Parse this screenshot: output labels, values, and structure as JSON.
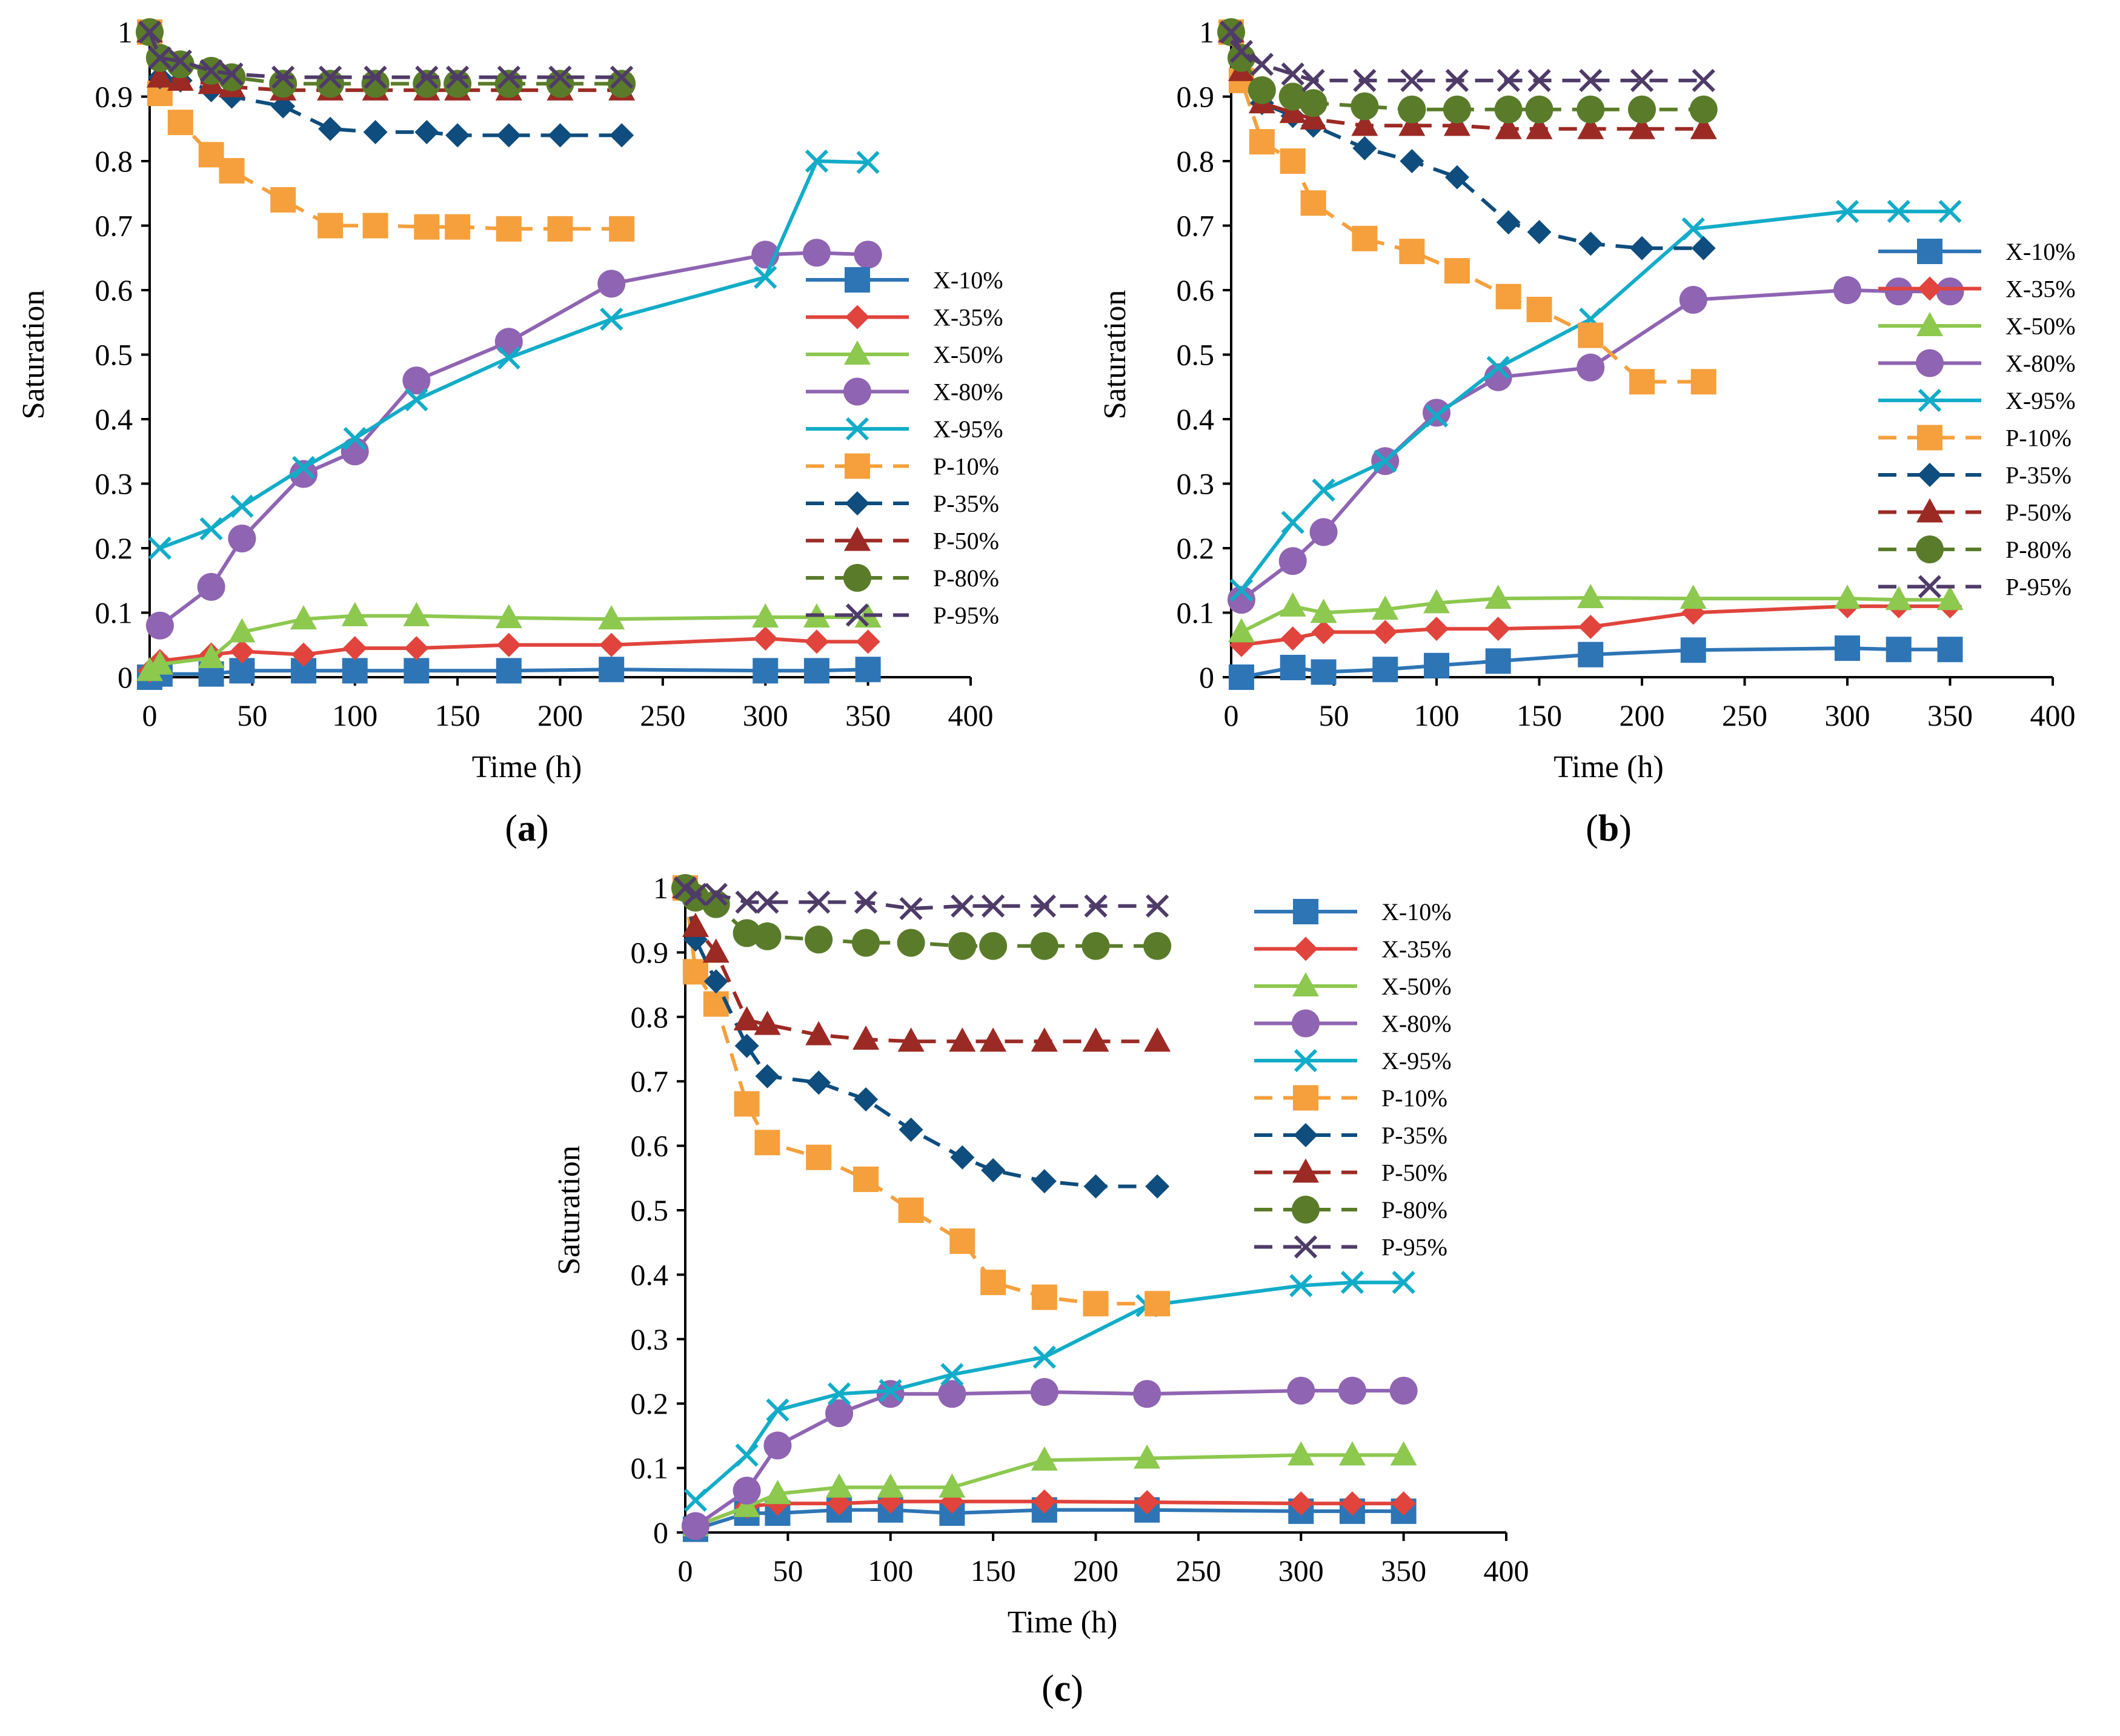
{
  "figure": {
    "panels": [
      "a",
      "b",
      "c"
    ]
  },
  "series_styles": {
    "X-10%": {
      "color": "#2E75B6",
      "marker": "square",
      "dash": false
    },
    "X-35%": {
      "color": "#E0443C",
      "marker": "diamond",
      "dash": false
    },
    "X-50%": {
      "color": "#8DC84F",
      "marker": "triangle",
      "dash": false
    },
    "X-80%": {
      "color": "#8F64B2",
      "marker": "circle",
      "dash": false
    },
    "X-95%": {
      "color": "#12ACC8",
      "marker": "x",
      "dash": false
    },
    "P-10%": {
      "color": "#F5A03C",
      "marker": "square",
      "dash": true
    },
    "P-35%": {
      "color": "#0E4D7D",
      "marker": "diamond",
      "dash": true
    },
    "P-50%": {
      "color": "#9C2A24",
      "marker": "triangle",
      "dash": true
    },
    "P-80%": {
      "color": "#5A7C2A",
      "marker": "circle",
      "dash": true
    },
    "P-95%": {
      "color": "#4F3B68",
      "marker": "x",
      "dash": true
    }
  },
  "chart_data": [
    {
      "type": "line",
      "panel_label": "a",
      "title": "",
      "xlabel": "Time (h)",
      "ylabel": "Saturation",
      "xlim": [
        0,
        400
      ],
      "ylim": [
        0,
        1
      ],
      "xticks": [
        0,
        50,
        100,
        150,
        200,
        250,
        300,
        350,
        400
      ],
      "yticks": [
        0,
        0.1,
        0.2,
        0.3,
        0.4,
        0.5,
        0.6,
        0.7,
        0.8,
        0.9,
        1
      ],
      "grid": false,
      "legend": "right",
      "series": [
        {
          "name": "X-10%",
          "x": [
            0,
            5,
            30,
            45,
            75,
            100,
            130,
            175,
            225,
            300,
            325,
            350
          ],
          "y": [
            0,
            0.005,
            0.005,
            0.01,
            0.01,
            0.01,
            0.01,
            0.01,
            0.012,
            0.01,
            0.01,
            0.012
          ]
        },
        {
          "name": "X-35%",
          "x": [
            0,
            5,
            30,
            45,
            75,
            100,
            130,
            175,
            225,
            300,
            325,
            350
          ],
          "y": [
            0.01,
            0.025,
            0.035,
            0.04,
            0.035,
            0.045,
            0.045,
            0.05,
            0.05,
            0.06,
            0.055,
            0.055
          ]
        },
        {
          "name": "X-50%",
          "x": [
            0,
            5,
            30,
            45,
            75,
            100,
            130,
            175,
            225,
            300,
            325,
            350
          ],
          "y": [
            0.01,
            0.02,
            0.03,
            0.07,
            0.09,
            0.095,
            0.095,
            0.092,
            0.09,
            0.093,
            0.093,
            0.093
          ]
        },
        {
          "name": "X-80%",
          "x": [
            5,
            30,
            45,
            75,
            100,
            130,
            175,
            225,
            300,
            325,
            350
          ],
          "y": [
            0.08,
            0.14,
            0.215,
            0.315,
            0.35,
            0.46,
            0.52,
            0.61,
            0.655,
            0.658,
            0.655
          ]
        },
        {
          "name": "X-95%",
          "x": [
            5,
            30,
            45,
            75,
            100,
            130,
            175,
            225,
            300,
            325,
            350
          ],
          "y": [
            0.2,
            0.23,
            0.265,
            0.325,
            0.37,
            0.43,
            0.495,
            0.555,
            0.62,
            0.8,
            0.798
          ]
        },
        {
          "name": "P-10%",
          "x": [
            0,
            5,
            15,
            30,
            40,
            65,
            88,
            110,
            135,
            150,
            175,
            200,
            230
          ],
          "y": [
            1,
            0.905,
            0.86,
            0.81,
            0.785,
            0.74,
            0.7,
            0.7,
            0.698,
            0.698,
            0.695,
            0.695,
            0.695
          ]
        },
        {
          "name": "P-35%",
          "x": [
            0,
            5,
            15,
            30,
            40,
            65,
            88,
            110,
            135,
            150,
            175,
            200,
            230
          ],
          "y": [
            1,
            0.93,
            0.925,
            0.91,
            0.9,
            0.885,
            0.85,
            0.845,
            0.845,
            0.84,
            0.84,
            0.84,
            0.84
          ]
        },
        {
          "name": "P-50%",
          "x": [
            0,
            5,
            15,
            30,
            40,
            65,
            88,
            110,
            135,
            150,
            175,
            200,
            230
          ],
          "y": [
            1,
            0.93,
            0.925,
            0.92,
            0.915,
            0.91,
            0.91,
            0.91,
            0.91,
            0.91,
            0.91,
            0.91,
            0.91
          ]
        },
        {
          "name": "P-80%",
          "x": [
            0,
            5,
            15,
            30,
            40,
            65,
            88,
            110,
            135,
            150,
            175,
            200,
            230
          ],
          "y": [
            1,
            0.96,
            0.95,
            0.94,
            0.93,
            0.92,
            0.92,
            0.92,
            0.92,
            0.92,
            0.92,
            0.92,
            0.92
          ]
        },
        {
          "name": "P-95%",
          "x": [
            0,
            5,
            15,
            30,
            40,
            65,
            88,
            110,
            135,
            150,
            175,
            200,
            230
          ],
          "y": [
            1,
            0.96,
            0.955,
            0.94,
            0.935,
            0.93,
            0.93,
            0.93,
            0.93,
            0.93,
            0.93,
            0.93,
            0.93
          ]
        }
      ]
    },
    {
      "type": "line",
      "panel_label": "b",
      "title": "",
      "xlabel": "Time (h)",
      "ylabel": "Saturation",
      "xlim": [
        0,
        400
      ],
      "ylim": [
        0,
        1
      ],
      "xticks": [
        0,
        50,
        100,
        150,
        200,
        250,
        300,
        350,
        400
      ],
      "yticks": [
        0,
        0.1,
        0.2,
        0.3,
        0.4,
        0.5,
        0.6,
        0.7,
        0.8,
        0.9,
        1
      ],
      "grid": false,
      "legend": "right",
      "series": [
        {
          "name": "X-10%",
          "x": [
            5,
            30,
            45,
            75,
            100,
            130,
            175,
            225,
            300,
            325,
            350
          ],
          "y": [
            0,
            0.015,
            0.008,
            0.012,
            0.018,
            0.025,
            0.035,
            0.042,
            0.045,
            0.043,
            0.043
          ]
        },
        {
          "name": "X-35%",
          "x": [
            5,
            30,
            45,
            75,
            100,
            130,
            175,
            225,
            300,
            325,
            350
          ],
          "y": [
            0.05,
            0.06,
            0.07,
            0.07,
            0.075,
            0.075,
            0.078,
            0.1,
            0.11,
            0.11,
            0.11
          ]
        },
        {
          "name": "X-50%",
          "x": [
            5,
            30,
            45,
            75,
            100,
            130,
            175,
            225,
            300,
            325,
            350
          ],
          "y": [
            0.07,
            0.11,
            0.1,
            0.105,
            0.115,
            0.122,
            0.123,
            0.122,
            0.122,
            0.12,
            0.12
          ]
        },
        {
          "name": "X-80%",
          "x": [
            5,
            30,
            45,
            75,
            100,
            130,
            175,
            225,
            300,
            325,
            350
          ],
          "y": [
            0.12,
            0.18,
            0.225,
            0.335,
            0.41,
            0.465,
            0.48,
            0.585,
            0.6,
            0.598,
            0.598
          ]
        },
        {
          "name": "X-95%",
          "x": [
            5,
            30,
            45,
            75,
            100,
            130,
            175,
            225,
            300,
            325,
            350
          ],
          "y": [
            0.135,
            0.24,
            0.29,
            0.335,
            0.405,
            0.48,
            0.555,
            0.695,
            0.722,
            0.722,
            0.722
          ]
        },
        {
          "name": "P-10%",
          "x": [
            0,
            5,
            15,
            30,
            40,
            65,
            88,
            110,
            135,
            150,
            175,
            200,
            230
          ],
          "y": [
            1,
            0.925,
            0.83,
            0.8,
            0.735,
            0.68,
            0.66,
            0.63,
            0.59,
            0.57,
            0.53,
            0.458,
            0.458
          ]
        },
        {
          "name": "P-35%",
          "x": [
            0,
            5,
            15,
            30,
            40,
            65,
            88,
            110,
            135,
            150,
            175,
            200,
            230
          ],
          "y": [
            1,
            0.95,
            0.89,
            0.87,
            0.855,
            0.82,
            0.8,
            0.775,
            0.705,
            0.69,
            0.672,
            0.665,
            0.665
          ]
        },
        {
          "name": "P-50%",
          "x": [
            0,
            5,
            15,
            30,
            40,
            65,
            88,
            110,
            135,
            150,
            175,
            200,
            230
          ],
          "y": [
            1,
            0.94,
            0.89,
            0.875,
            0.865,
            0.855,
            0.855,
            0.855,
            0.85,
            0.85,
            0.85,
            0.85,
            0.85
          ]
        },
        {
          "name": "P-80%",
          "x": [
            0,
            5,
            15,
            30,
            40,
            65,
            88,
            110,
            135,
            150,
            175,
            200,
            230
          ],
          "y": [
            1,
            0.96,
            0.91,
            0.9,
            0.89,
            0.885,
            0.88,
            0.88,
            0.88,
            0.88,
            0.88,
            0.88,
            0.88
          ]
        },
        {
          "name": "P-95%",
          "x": [
            0,
            5,
            15,
            30,
            40,
            65,
            88,
            110,
            135,
            150,
            175,
            200,
            230
          ],
          "y": [
            1,
            0.97,
            0.95,
            0.935,
            0.925,
            0.925,
            0.925,
            0.925,
            0.925,
            0.925,
            0.925,
            0.925,
            0.925
          ]
        }
      ]
    },
    {
      "type": "line",
      "panel_label": "c",
      "title": "",
      "xlabel": "Time (h)",
      "ylabel": "Saturation",
      "xlim": [
        0,
        400
      ],
      "ylim": [
        0,
        1
      ],
      "xticks": [
        0,
        50,
        100,
        150,
        200,
        250,
        300,
        350,
        400
      ],
      "yticks": [
        0,
        0.1,
        0.2,
        0.3,
        0.4,
        0.5,
        0.6,
        0.7,
        0.8,
        0.9,
        1
      ],
      "grid": false,
      "legend": "upper right",
      "series": [
        {
          "name": "X-10%",
          "x": [
            5,
            30,
            45,
            75,
            100,
            130,
            175,
            225,
            300,
            325,
            350
          ],
          "y": [
            0.005,
            0.03,
            0.03,
            0.035,
            0.035,
            0.03,
            0.035,
            0.035,
            0.033,
            0.033,
            0.033
          ]
        },
        {
          "name": "X-35%",
          "x": [
            5,
            30,
            45,
            75,
            100,
            130,
            175,
            225,
            300,
            325,
            350
          ],
          "y": [
            0.01,
            0.04,
            0.045,
            0.045,
            0.048,
            0.048,
            0.048,
            0.047,
            0.045,
            0.045,
            0.045
          ]
        },
        {
          "name": "X-50%",
          "x": [
            5,
            30,
            45,
            75,
            100,
            130,
            175,
            225,
            300,
            325,
            350
          ],
          "y": [
            0.01,
            0.04,
            0.06,
            0.07,
            0.07,
            0.07,
            0.112,
            0.115,
            0.12,
            0.12,
            0.12
          ]
        },
        {
          "name": "X-80%",
          "x": [
            5,
            30,
            45,
            75,
            100,
            130,
            175,
            225,
            300,
            325,
            350
          ],
          "y": [
            0.01,
            0.065,
            0.135,
            0.185,
            0.215,
            0.215,
            0.218,
            0.215,
            0.22,
            0.22,
            0.22
          ]
        },
        {
          "name": "X-95%",
          "x": [
            5,
            30,
            45,
            75,
            100,
            130,
            175,
            225,
            300,
            325,
            350
          ],
          "y": [
            0.05,
            0.12,
            0.19,
            0.215,
            0.22,
            0.245,
            0.272,
            0.352,
            0.383,
            0.388,
            0.388
          ]
        },
        {
          "name": "P-10%",
          "x": [
            0,
            5,
            15,
            30,
            40,
            65,
            88,
            110,
            135,
            150,
            175,
            200,
            230
          ],
          "y": [
            1,
            0.87,
            0.82,
            0.665,
            0.605,
            0.582,
            0.548,
            0.5,
            0.452,
            0.388,
            0.365,
            0.355,
            0.355
          ]
        },
        {
          "name": "P-35%",
          "x": [
            0,
            5,
            15,
            30,
            40,
            65,
            88,
            110,
            135,
            150,
            175,
            200,
            230
          ],
          "y": [
            1,
            0.92,
            0.855,
            0.755,
            0.708,
            0.698,
            0.672,
            0.625,
            0.582,
            0.562,
            0.545,
            0.537,
            0.537
          ]
        },
        {
          "name": "P-50%",
          "x": [
            0,
            5,
            15,
            30,
            40,
            65,
            88,
            110,
            135,
            150,
            175,
            200,
            230
          ],
          "y": [
            1,
            0.94,
            0.9,
            0.795,
            0.788,
            0.772,
            0.765,
            0.762,
            0.762,
            0.762,
            0.762,
            0.762,
            0.762
          ]
        },
        {
          "name": "P-80%",
          "x": [
            0,
            5,
            15,
            30,
            40,
            65,
            88,
            110,
            135,
            150,
            175,
            200,
            230
          ],
          "y": [
            1,
            0.985,
            0.975,
            0.93,
            0.925,
            0.92,
            0.915,
            0.915,
            0.91,
            0.91,
            0.91,
            0.91,
            0.91
          ]
        },
        {
          "name": "P-95%",
          "x": [
            0,
            5,
            15,
            30,
            40,
            65,
            88,
            110,
            135,
            150,
            175,
            200,
            230
          ],
          "y": [
            1,
            0.99,
            0.99,
            0.978,
            0.978,
            0.978,
            0.978,
            0.968,
            0.972,
            0.972,
            0.972,
            0.972,
            0.972
          ]
        }
      ]
    }
  ]
}
